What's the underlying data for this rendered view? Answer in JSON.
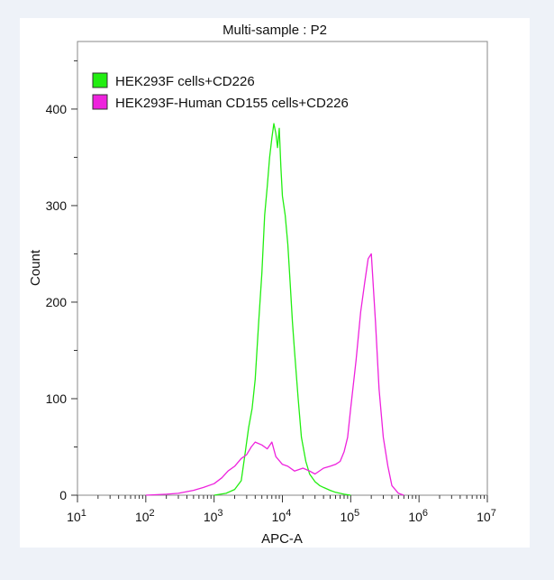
{
  "chart_data": {
    "type": "line",
    "title": "Multi-sample : P2",
    "xlabel": "APC-A",
    "ylabel": "Count",
    "x_scale": "log10",
    "xlim": [
      10,
      10000000
    ],
    "ylim": [
      0,
      470
    ],
    "grid": false,
    "legend_position": "top-left",
    "y_ticks": [
      0,
      100,
      200,
      300,
      400
    ],
    "x_ticks": [
      {
        "base": "10",
        "exp": "1"
      },
      {
        "base": "10",
        "exp": "2"
      },
      {
        "base": "10",
        "exp": "3"
      },
      {
        "base": "10",
        "exp": "4"
      },
      {
        "base": "10",
        "exp": "5"
      },
      {
        "base": "10",
        "exp": "6"
      },
      {
        "base": "10",
        "exp": "7"
      }
    ],
    "series": [
      {
        "name": "HEK293F cells+CD226",
        "color": "#22ee11",
        "x": [
          1000,
          1500,
          2000,
          2500,
          2800,
          3200,
          3600,
          4000,
          4500,
          5000,
          5500,
          6000,
          6500,
          7000,
          7500,
          8000,
          8500,
          9000,
          9500,
          10000,
          11000,
          12000,
          13000,
          14000,
          15000,
          17000,
          19000,
          22000,
          25000,
          30000,
          35000,
          40000,
          50000,
          60000,
          80000,
          100000
        ],
        "y": [
          0,
          2,
          6,
          15,
          40,
          70,
          90,
          120,
          180,
          230,
          290,
          320,
          350,
          370,
          385,
          375,
          360,
          380,
          340,
          310,
          290,
          260,
          220,
          180,
          150,
          100,
          60,
          35,
          22,
          14,
          10,
          8,
          5,
          3,
          1,
          0
        ]
      },
      {
        "name": "HEK293F-Human CD155 cells+CD226",
        "color": "#ee22dd",
        "x": [
          100,
          200,
          300,
          500,
          700,
          1000,
          1300,
          1600,
          2000,
          2500,
          3000,
          3500,
          4000,
          5000,
          6000,
          7000,
          8000,
          10000,
          12000,
          15000,
          20000,
          25000,
          30000,
          40000,
          50000,
          60000,
          70000,
          80000,
          90000,
          100000,
          120000,
          140000,
          160000,
          180000,
          200000,
          230000,
          260000,
          300000,
          350000,
          400000,
          500000,
          600000
        ],
        "y": [
          0,
          1,
          2,
          5,
          8,
          12,
          18,
          25,
          30,
          38,
          42,
          50,
          55,
          52,
          48,
          55,
          40,
          32,
          30,
          25,
          28,
          25,
          22,
          28,
          30,
          32,
          35,
          45,
          60,
          90,
          140,
          190,
          220,
          245,
          250,
          180,
          110,
          60,
          30,
          10,
          2,
          0
        ]
      }
    ]
  }
}
